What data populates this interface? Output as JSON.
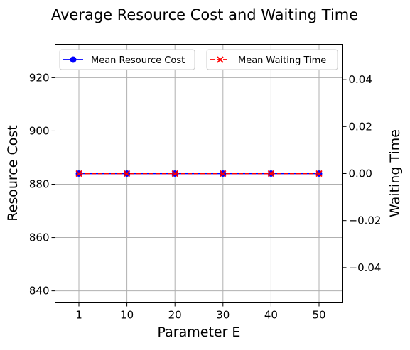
{
  "chart_data": {
    "type": "line",
    "title": "Average Resource Cost and Waiting Time",
    "xlabel": "Parameter E",
    "ylabel_left": "Resource Cost",
    "ylabel_right": "Waiting Time",
    "categories": [
      "1",
      "10",
      "20",
      "30",
      "40",
      "50"
    ],
    "left_axis": {
      "ylim": [
        835.5,
        932.5
      ],
      "ticks": [
        840,
        860,
        880,
        900,
        920
      ],
      "tick_labels": [
        "840",
        "860",
        "880",
        "900",
        "920"
      ]
    },
    "right_axis": {
      "ylim": [
        -0.055,
        0.055
      ],
      "ticks": [
        -0.04,
        -0.02,
        0.0,
        0.02,
        0.04
      ],
      "tick_labels": [
        "−0.04",
        "−0.02",
        "0.00",
        "0.02",
        "0.04"
      ]
    },
    "series": [
      {
        "name": "Mean Resource Cost",
        "axis": "left",
        "values": [
          884,
          884,
          884,
          884,
          884,
          884
        ],
        "color": "#0000ff",
        "marker": "circle",
        "linestyle": "solid"
      },
      {
        "name": "Mean Waiting Time",
        "axis": "right",
        "values": [
          0,
          0,
          0,
          0,
          0,
          0
        ],
        "color": "#ff0000",
        "marker": "x",
        "linestyle": "dashed"
      }
    ],
    "grid": true,
    "legend": [
      {
        "series": "Mean Resource Cost",
        "placement": "top-left"
      },
      {
        "series": "Mean Waiting Time",
        "placement": "top-right"
      }
    ]
  }
}
